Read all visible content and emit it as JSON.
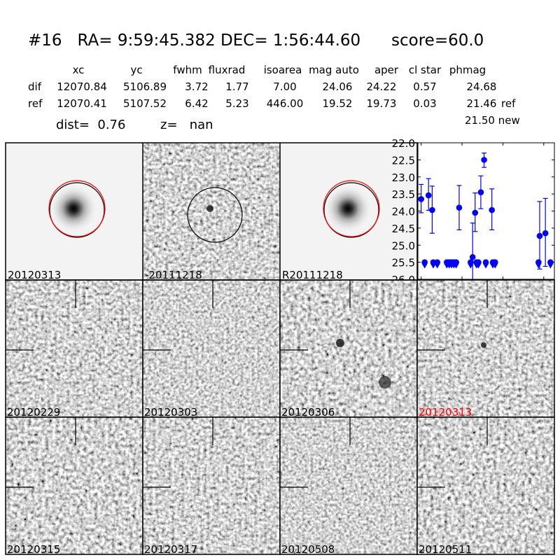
{
  "header": {
    "title": "#16   RA= 9:59:45.382 DEC= 1:56:44.60      score=60.0"
  },
  "table": {
    "columns": [
      "xc",
      "yc",
      "fwhm",
      "fluxrad",
      "isoarea",
      "mag auto",
      "aper",
      "cl star",
      "phmag"
    ],
    "rows": [
      {
        "label": "dif",
        "values": [
          "12070.84",
          "5106.89",
          "3.72",
          "1.77",
          "7.00",
          "24.06",
          "24.22",
          "0.57",
          "24.68"
        ],
        "suffix": ""
      },
      {
        "label": "ref",
        "values": [
          "12070.41",
          "5107.52",
          "6.42",
          "5.23",
          "446.00",
          "19.52",
          "19.73",
          "0.03",
          "21.46"
        ],
        "suffix": "ref"
      }
    ],
    "new_phmag": "21.50 new",
    "dist": "dist=  0.76",
    "z": "z=   nan"
  },
  "stamps": {
    "top": [
      "20120313",
      "-20111218",
      "R20111218"
    ],
    "grid": [
      {
        "label": "20120229",
        "color": "#000000"
      },
      {
        "label": "20120303",
        "color": "#000000"
      },
      {
        "label": "20120306",
        "color": "#000000"
      },
      {
        "label": "20120313",
        "color": "#ff0000"
      },
      {
        "label": "20120315",
        "color": "#000000"
      },
      {
        "label": "20120317",
        "color": "#000000"
      },
      {
        "label": "20120508",
        "color": "#000000"
      },
      {
        "label": "20120511",
        "color": "#000000"
      }
    ]
  },
  "chart_data": {
    "type": "scatter",
    "title": "",
    "xlabel": "",
    "ylabel": "",
    "xlim": [
      -4,
      163
    ],
    "ylim": [
      26.0,
      22.0
    ],
    "y_inverted": true,
    "xticks": [
      "0",
      "50",
      "100",
      "150"
    ],
    "yticks": [
      "22.0",
      "22.5",
      "23.0",
      "23.5",
      "24.0",
      "24.5",
      "25.0",
      "25.5",
      "26.0"
    ],
    "color": "#0000ff",
    "detections": [
      {
        "x": 0,
        "y": 23.65,
        "ylo": 23.22,
        "yhi": 24.05
      },
      {
        "x": 9,
        "y": 23.54,
        "ylo": 23.05,
        "yhi": 23.98
      },
      {
        "x": 13.5,
        "y": 23.97,
        "ylo": 23.27,
        "yhi": 24.65
      },
      {
        "x": 46.5,
        "y": 23.9,
        "ylo": 23.25,
        "yhi": 24.55
      },
      {
        "x": 63,
        "y": 25.35,
        "ylo": 24.35,
        "yhi": 26.3
      },
      {
        "x": 66,
        "y": 24.05,
        "ylo": 23.47,
        "yhi": 24.6
      },
      {
        "x": 73,
        "y": 23.45,
        "ylo": 22.97,
        "yhi": 23.93
      },
      {
        "x": 77,
        "y": 22.5,
        "ylo": 22.3,
        "yhi": 22.72
      },
      {
        "x": 86.5,
        "y": 23.97,
        "ylo": 23.35,
        "yhi": 24.55
      },
      {
        "x": 145,
        "y": 24.73,
        "ylo": 23.72,
        "yhi": 25.7
      },
      {
        "x": 152,
        "y": 24.65,
        "ylo": 23.63,
        "yhi": 25.62
      }
    ],
    "upper_limits": {
      "y": 25.5,
      "x": [
        4.3,
        14.8,
        19.7,
        31.4,
        34.3,
        37.1,
        40.0,
        42.8,
        60.5,
        67.7,
        70,
        79.1,
        87.7,
        90.5,
        143.6,
        158.2
      ]
    }
  }
}
